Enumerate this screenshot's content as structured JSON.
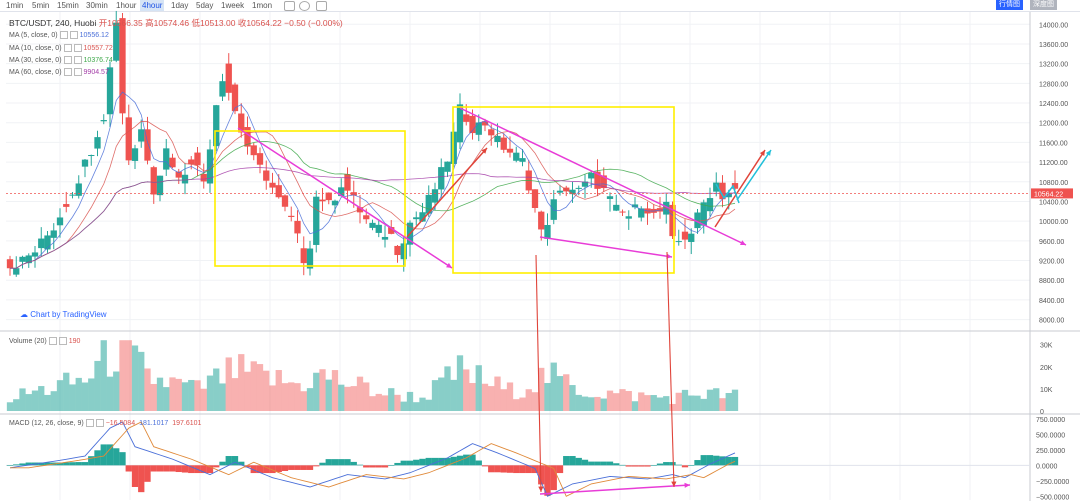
{
  "toolbar": {
    "timeframes": [
      "1min",
      "5min",
      "15min",
      "30min",
      "1hour",
      "4hour",
      "1day",
      "5day",
      "1week",
      "1mon"
    ],
    "active": "4hour",
    "right_buttons": [
      "行情图",
      "深度图"
    ]
  },
  "header": {
    "symbol": "BTC/USDT, 240, Huobi",
    "open_label": "开",
    "open": "10566.35",
    "high_label": "高",
    "high": "10574.46",
    "low_label": "低",
    "low": "10513.00",
    "close_label": "收",
    "close": "10564.22",
    "change": "−0.50 (−0.00%)"
  },
  "indicators": [
    {
      "label": "MA (5, close, 0)",
      "value": "10556.12",
      "color": "#4a6fd8"
    },
    {
      "label": "MA (10, close, 0)",
      "value": "10557.72",
      "color": "#d9534f"
    },
    {
      "label": "MA (30, close, 0)",
      "value": "10376.74",
      "color": "#3ea84a"
    },
    {
      "label": "MA (60, close, 0)",
      "value": "9904.57",
      "color": "#a43ea8"
    }
  ],
  "volume_label": "Volume (20)",
  "volume_value": "190",
  "macd_label": "MACD (12, 26, close, 9)",
  "macd_values": [
    "−16.5084",
    "181.1017",
    "197.6101"
  ],
  "watermark": "Chart by TradingView",
  "current_price_tag": "10564.22",
  "chart_data": {
    "type": "candlestick",
    "price_axis": {
      "ticks": [
        "14000.00",
        "13600.00",
        "13200.00",
        "12800.00",
        "12400.00",
        "12000.00",
        "11600.00",
        "11200.00",
        "10800.00",
        "10400.00",
        "10000.00",
        "9600.00",
        "9200.00",
        "8800.00",
        "8400.00",
        "8000.00"
      ],
      "range": [
        7850,
        14250
      ]
    },
    "volume_axis": {
      "ticks": [
        "30K",
        "20K",
        "10K",
        "0"
      ],
      "range": [
        0,
        33000
      ]
    },
    "macd_axis": {
      "ticks": [
        "750.0000",
        "500.0000",
        "250.0000",
        "0.0000",
        "−250.0000",
        "−500.0000"
      ],
      "range": [
        -560,
        780
      ]
    },
    "price_path": [
      [
        0,
        9050
      ],
      [
        3,
        9200
      ],
      [
        5,
        9400
      ],
      [
        8,
        9900
      ],
      [
        10,
        10400
      ],
      [
        12,
        10900
      ],
      [
        14,
        11500
      ],
      [
        16,
        12200
      ],
      [
        17,
        13200
      ],
      [
        18,
        14200
      ],
      [
        19,
        12000
      ],
      [
        20,
        11200
      ],
      [
        22,
        11900
      ],
      [
        24,
        10600
      ],
      [
        26,
        11500
      ],
      [
        28,
        10800
      ],
      [
        30,
        11300
      ],
      [
        32,
        10800
      ],
      [
        34,
        12500
      ],
      [
        35,
        13000
      ],
      [
        37,
        12200
      ],
      [
        38,
        11800
      ],
      [
        40,
        11200
      ],
      [
        42,
        10900
      ],
      [
        44,
        10400
      ],
      [
        46,
        10000
      ],
      [
        48,
        9200
      ],
      [
        49,
        9600
      ],
      [
        50,
        10600
      ],
      [
        52,
        10300
      ],
      [
        54,
        10800
      ],
      [
        56,
        10400
      ],
      [
        58,
        10000
      ],
      [
        60,
        9800
      ],
      [
        62,
        9700
      ],
      [
        63,
        9400
      ],
      [
        65,
        10000
      ],
      [
        67,
        10200
      ],
      [
        69,
        10700
      ],
      [
        71,
        11300
      ],
      [
        73,
        12300
      ],
      [
        75,
        11900
      ],
      [
        77,
        12000
      ],
      [
        79,
        11600
      ],
      [
        81,
        11400
      ],
      [
        83,
        11200
      ],
      [
        85,
        10200
      ],
      [
        86,
        9700
      ],
      [
        88,
        10400
      ],
      [
        90,
        10700
      ],
      [
        92,
        10600
      ],
      [
        94,
        10900
      ],
      [
        96,
        10600
      ],
      [
        98,
        10200
      ],
      [
        100,
        10100
      ],
      [
        102,
        10400
      ],
      [
        104,
        10100
      ],
      [
        106,
        10300
      ],
      [
        107,
        9500
      ],
      [
        109,
        9700
      ],
      [
        110,
        9800
      ],
      [
        112,
        10400
      ],
      [
        114,
        10800
      ],
      [
        115,
        10500
      ],
      [
        116,
        10600
      ]
    ],
    "macd_path": [
      [
        0,
        -40
      ],
      [
        8,
        80
      ],
      [
        12,
        150
      ],
      [
        16,
        600
      ],
      [
        18,
        700
      ],
      [
        20,
        300
      ],
      [
        26,
        100
      ],
      [
        32,
        -150
      ],
      [
        36,
        50
      ],
      [
        42,
        -200
      ],
      [
        48,
        -350
      ],
      [
        54,
        -150
      ],
      [
        60,
        -220
      ],
      [
        64,
        -120
      ],
      [
        70,
        120
      ],
      [
        74,
        350
      ],
      [
        78,
        200
      ],
      [
        84,
        -50
      ],
      [
        86,
        -500
      ],
      [
        90,
        -300
      ],
      [
        96,
        -180
      ],
      [
        102,
        -220
      ],
      [
        106,
        -150
      ],
      [
        108,
        -200
      ],
      [
        112,
        20
      ],
      [
        116,
        200
      ]
    ],
    "volume_path": [
      [
        0,
        6
      ],
      [
        6,
        10
      ],
      [
        12,
        14
      ],
      [
        16,
        26
      ],
      [
        18,
        30
      ],
      [
        22,
        15
      ],
      [
        30,
        10
      ],
      [
        36,
        18
      ],
      [
        46,
        12
      ],
      [
        50,
        16
      ],
      [
        60,
        8
      ],
      [
        66,
        6
      ],
      [
        72,
        18
      ],
      [
        80,
        9
      ],
      [
        86,
        16
      ],
      [
        92,
        9
      ],
      [
        100,
        7
      ],
      [
        106,
        6
      ],
      [
        110,
        8
      ],
      [
        116,
        7
      ]
    ],
    "annotations": [
      {
        "type": "rectangle",
        "color": "#ffee00"
      },
      {
        "type": "rectangle",
        "color": "#ffee00"
      },
      {
        "type": "trendline",
        "color": "#e83cd7"
      },
      {
        "type": "arrow",
        "color": "#e0443a"
      },
      {
        "type": "arrow",
        "color": "#21bfd9"
      }
    ]
  }
}
